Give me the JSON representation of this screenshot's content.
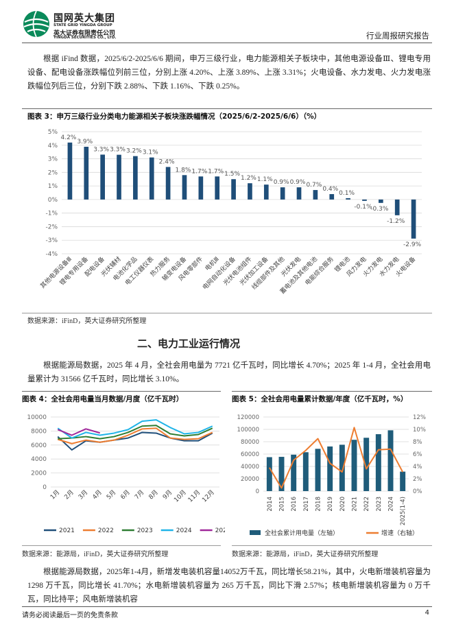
{
  "header": {
    "group_cn": "国网英大集团",
    "group_en": "STATE GRID YINGDA GROUP",
    "company_cn": "英大证券有限责任公司",
    "company_en": "YINGDA SECURITIES CO., LTD.",
    "report_type": "行业周报研究报告"
  },
  "paragraphs": [
    "根据 iFind 数据，2025/6/2-2025/6/6 期间，申万三级行业，电力能源相关子板块中，其他电源设备Ⅲ、锂电专用设备、配电设备涨跌幅位列前三位，分别上涨 4.20%、上涨 3.89%、上涨 3.31%；火电设备、水力发电、火力发电涨跌幅位列后三位，分别下跌 2.88%、下跌 1.16%、下跌 0.25%。",
    "根据能源局数据，2025 年 4 月，全社会用电量为 7721 亿千瓦时，同比增长 4.70%；2025 年 1-4 月，全社会用电量累计为 31566 亿千瓦时，同比增长 3.10%。",
    "根据能源局数据，2025年1-4月，新增发电装机容量14052万千瓦，同比增长58.21%，其中，火电新增装机容量为 1298 万千瓦，同比增长 41.70%；水电新增装机容量为 265 万千瓦，同比下滑 2.57%；核电新增装机容量为 0 万千瓦，同比持平；风电新增装机容"
  ],
  "section_heading": "二、电力工业运行情况",
  "chart_data": [
    {
      "type": "bar",
      "title": "图表 3：申万三级行业分类电力能源相关子板块涨跌幅情况（2025/6/2-2025/6/6）（%）",
      "source": "数据来源：iFinD，英大证券研究所整理",
      "categories": [
        "其他电源设备Ⅲ",
        "锂电专用设备",
        "配电设备",
        "光伏辅材",
        "电池化学品",
        "电工仪器仪表",
        "热力服务",
        "输变电设备",
        "风电零部件",
        "电机Ⅲ",
        "电网自动化设备",
        "光伏电池组件",
        "光伏加工设备",
        "线缆部件及其他",
        "光伏发电",
        "蓄电池及其他电池",
        "电能综合服务",
        "锂电池",
        "风力发电",
        "火力发电",
        "水力发电",
        "火电设备"
      ],
      "values": [
        4.2,
        3.89,
        3.31,
        3.3,
        3.2,
        3.1,
        2.4,
        1.8,
        1.7,
        1.7,
        1.5,
        1.2,
        1.1,
        0.9,
        0.9,
        0.7,
        0.4,
        0.1,
        -0.1,
        -0.25,
        -1.16,
        -2.88
      ],
      "value_labels": [
        "4.2%",
        "3.9%",
        "3.3%",
        "3.3%",
        "3.2%",
        "3.1%",
        "2.4%",
        "1.8%",
        "1.7%",
        "1.7%",
        "1.5%",
        "1.2%",
        "1.1%",
        "0.9%",
        "0.9%",
        "0.7%",
        "0.4%",
        "0.1%",
        "-0.1%",
        "-0.3%",
        "-1.2%",
        "-2.9%"
      ],
      "color": "#1f4e79",
      "ylim": [
        -4,
        5
      ],
      "yticks": [
        {
          "value": -4,
          "label": "-4%"
        },
        {
          "value": -3,
          "label": "-3%"
        },
        {
          "value": -2,
          "label": "-2%"
        },
        {
          "value": -1,
          "label": "-1%"
        },
        {
          "value": 0,
          "label": "0%"
        },
        {
          "value": 1,
          "label": "1%"
        },
        {
          "value": 2,
          "label": "2%"
        },
        {
          "value": 3,
          "label": "3%"
        },
        {
          "value": 4,
          "label": "4%"
        },
        {
          "value": 5,
          "label": "5%"
        }
      ],
      "grid": true
    },
    {
      "type": "line",
      "title": "图表 4：全社会用电量当月数据/月度（亿千瓦时）",
      "source": "数据来源：能源局，iFinD，英大证券研究所整理",
      "categories": [
        "1月",
        "2月",
        "3月",
        "4月",
        "5月",
        "6月",
        "7月",
        "8月",
        "9月",
        "10月",
        "11月",
        "12月"
      ],
      "series": [
        {
          "name": "2021",
          "color": "#1f4e79",
          "values": [
            7200,
            5300,
            6600,
            6400,
            6700,
            7000,
            7800,
            7700,
            7000,
            6600,
            6600,
            7700
          ]
        },
        {
          "name": "2022",
          "color": "#ed7d31",
          "values": [
            6800,
            6200,
            6700,
            6400,
            6700,
            7400,
            8300,
            8400,
            7000,
            6800,
            6900,
            7800
          ]
        },
        {
          "name": "2023",
          "color": "#2e7d32",
          "values": [
            6900,
            7000,
            7200,
            6900,
            7200,
            7800,
            8700,
            8800,
            7600,
            7300,
            7500,
            8400
          ]
        },
        {
          "name": "2024",
          "color": "#1fb4e8",
          "values": [
            8400,
            7000,
            7800,
            7400,
            7700,
            8200,
            9400,
            9600,
            8500,
            7600,
            7800,
            8700
          ]
        },
        {
          "name": "2025",
          "color": "#a0289a",
          "values": [
            8200,
            7400,
            8300,
            7721,
            null,
            null,
            null,
            null,
            null,
            null,
            null,
            null
          ]
        }
      ],
      "ylim": [
        0,
        10000
      ],
      "yticks": [
        0,
        2000,
        4000,
        6000,
        8000,
        10000
      ],
      "grid": true,
      "legend": "bottom"
    },
    {
      "type": "combo",
      "title": "图表 5：全社会用电量累计数据/年度（亿千瓦时，%）",
      "source": "数据来源：能源局，iFinD，英大证券研究所整理",
      "categories": [
        "2014",
        "2015",
        "2016",
        "2017",
        "2018",
        "2019",
        "2020",
        "2021",
        "2022",
        "2023",
        "2024",
        "2025(1-4)"
      ],
      "series": [
        {
          "name": "全社会累计用电量（左轴）",
          "type": "bar",
          "color": "#1f5c7a",
          "values": [
            55000,
            55500,
            59000,
            63000,
            68500,
            72300,
            75100,
            83100,
            86400,
            92200,
            98500,
            31566
          ]
        },
        {
          "name": "增速（右轴）",
          "type": "line",
          "axis": "y2",
          "color": "#ed7d31",
          "values": [
            3.8,
            0.5,
            5.0,
            6.6,
            8.5,
            4.5,
            3.1,
            10.3,
            3.6,
            6.7,
            6.8,
            3.1
          ]
        }
      ],
      "ylim": [
        0,
        120000
      ],
      "yticks": [
        0,
        20000,
        40000,
        60000,
        80000,
        100000,
        120000
      ],
      "y2lim": [
        0,
        12
      ],
      "y2ticks": [
        {
          "value": 0,
          "label": "0%"
        },
        {
          "value": 2,
          "label": "2%"
        },
        {
          "value": 4,
          "label": "4%"
        },
        {
          "value": 6,
          "label": "6%"
        },
        {
          "value": 8,
          "label": "8%"
        },
        {
          "value": 10,
          "label": "10%"
        },
        {
          "value": 12,
          "label": "12%"
        }
      ],
      "grid": true,
      "legend": "bottom"
    }
  ],
  "footer": {
    "disclaimer": "请务必阅读最后一页的免责条款",
    "page": "4"
  }
}
